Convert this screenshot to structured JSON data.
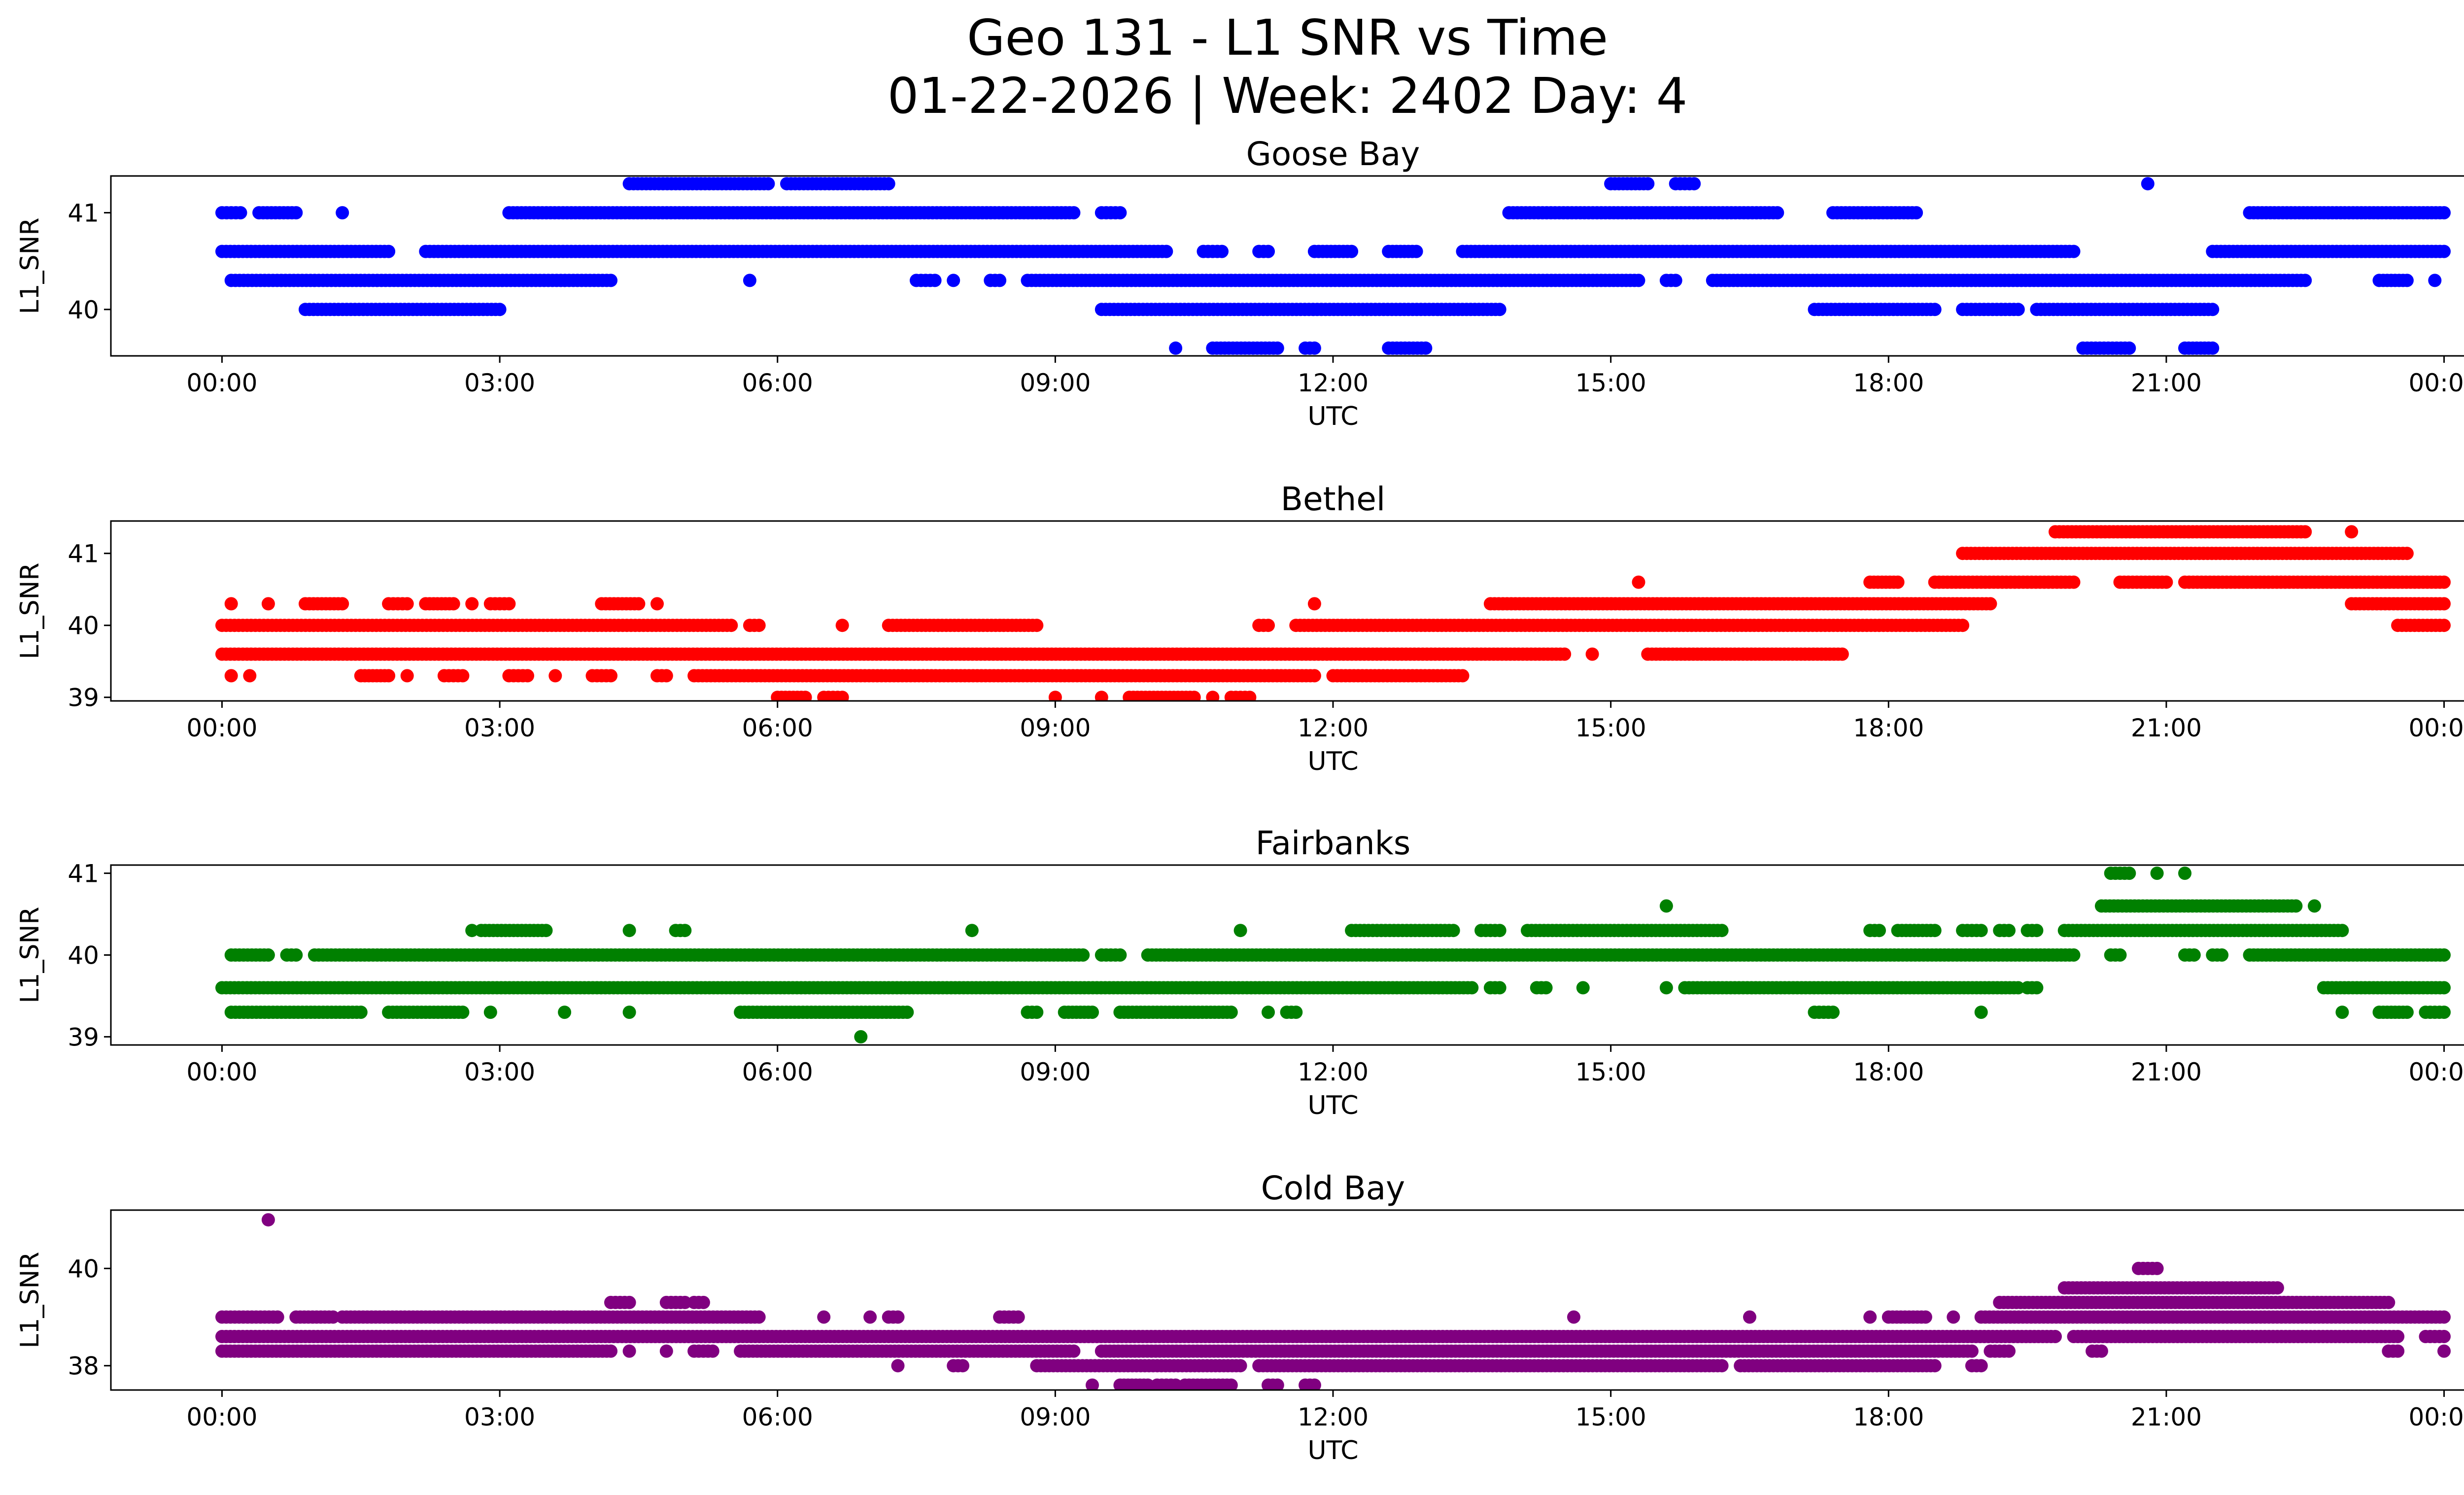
{
  "figure": {
    "title_line1": "Geo 131 - L1 SNR vs Time",
    "title_line2": "01-22-2026 | Week: 2402 Day: 4"
  },
  "chart_data": [
    {
      "type": "scatter",
      "title": "Goose Bay",
      "xlabel": "UTC",
      "ylabel": "L1_SNR",
      "color": "#0000ff",
      "xlim": [
        -1.2,
        25.2
      ],
      "ylim": [
        39.52,
        41.38
      ],
      "x_ticks": [
        0,
        3,
        6,
        9,
        12,
        15,
        18,
        21,
        24
      ],
      "x_tick_labels": [
        "00:00",
        "03:00",
        "06:00",
        "09:00",
        "12:00",
        "15:00",
        "18:00",
        "21:00",
        "00:00"
      ],
      "y_ticks": [
        40,
        41
      ],
      "y_tick_labels": [
        "40",
        "41"
      ],
      "levels": [
        39.6,
        40.0,
        40.3,
        40.6,
        41.0,
        41.3
      ],
      "segments": [
        [
          41.3,
          4.4,
          5.9
        ],
        [
          41.3,
          6.1,
          7.2
        ],
        [
          41.3,
          15.0,
          15.4
        ],
        [
          41.3,
          15.7,
          15.9
        ],
        [
          41.3,
          20.8,
          20.8
        ],
        [
          41.0,
          0.0,
          0.2
        ],
        [
          41.0,
          0.4,
          0.8
        ],
        [
          41.0,
          1.3,
          1.3
        ],
        [
          41.0,
          3.1,
          9.2
        ],
        [
          41.0,
          9.5,
          9.7
        ],
        [
          41.0,
          13.9,
          16.8
        ],
        [
          41.0,
          17.4,
          18.3
        ],
        [
          41.0,
          21.9,
          24.0
        ],
        [
          40.6,
          0.0,
          1.8
        ],
        [
          40.6,
          2.2,
          10.2
        ],
        [
          40.6,
          10.6,
          10.8
        ],
        [
          40.6,
          11.2,
          11.3
        ],
        [
          40.6,
          11.8,
          12.2
        ],
        [
          40.6,
          12.6,
          12.9
        ],
        [
          40.6,
          13.4,
          20.0
        ],
        [
          40.6,
          21.5,
          24.0
        ],
        [
          40.3,
          0.1,
          4.2
        ],
        [
          40.3,
          5.7,
          5.7
        ],
        [
          40.3,
          7.5,
          7.7
        ],
        [
          40.3,
          7.9,
          7.9
        ],
        [
          40.3,
          8.3,
          8.4
        ],
        [
          40.3,
          8.7,
          15.3
        ],
        [
          40.3,
          15.6,
          15.7
        ],
        [
          40.3,
          16.1,
          22.5
        ],
        [
          40.3,
          23.3,
          23.6
        ],
        [
          40.3,
          23.9,
          23.9
        ],
        [
          40.0,
          0.9,
          3.0
        ],
        [
          40.0,
          9.5,
          13.8
        ],
        [
          40.0,
          17.2,
          18.5
        ],
        [
          40.0,
          18.8,
          19.4
        ],
        [
          40.0,
          19.6,
          21.5
        ],
        [
          39.6,
          10.3,
          10.3
        ],
        [
          39.6,
          10.7,
          11.4
        ],
        [
          39.6,
          11.7,
          11.8
        ],
        [
          39.6,
          12.6,
          13.0
        ],
        [
          39.6,
          20.1,
          20.6
        ],
        [
          39.6,
          21.2,
          21.5
        ]
      ]
    },
    {
      "type": "scatter",
      "title": "Bethel",
      "xlabel": "UTC",
      "ylabel": "L1_SNR",
      "color": "#ff0000",
      "xlim": [
        -1.2,
        25.2
      ],
      "ylim": [
        38.95,
        41.45
      ],
      "x_ticks": [
        0,
        3,
        6,
        9,
        12,
        15,
        18,
        21,
        24
      ],
      "x_tick_labels": [
        "00:00",
        "03:00",
        "06:00",
        "09:00",
        "12:00",
        "15:00",
        "18:00",
        "21:00",
        "00:00"
      ],
      "y_ticks": [
        39,
        40,
        41
      ],
      "y_tick_labels": [
        "39",
        "40",
        "41"
      ],
      "levels": [
        39.0,
        39.3,
        39.6,
        40.0,
        40.3,
        40.6,
        41.0,
        41.3
      ],
      "segments": [
        [
          41.3,
          19.8,
          22.5
        ],
        [
          41.3,
          23.0,
          23.0
        ],
        [
          41.0,
          18.8,
          23.6
        ],
        [
          40.6,
          15.3,
          15.3
        ],
        [
          40.6,
          17.8,
          18.1
        ],
        [
          40.6,
          18.5,
          20.0
        ],
        [
          40.6,
          20.5,
          21.0
        ],
        [
          40.6,
          21.2,
          24.0
        ],
        [
          40.3,
          0.1,
          0.1
        ],
        [
          40.3,
          0.5,
          0.5
        ],
        [
          40.3,
          0.9,
          1.3
        ],
        [
          40.3,
          1.8,
          2.0
        ],
        [
          40.3,
          2.2,
          2.5
        ],
        [
          40.3,
          2.7,
          2.7
        ],
        [
          40.3,
          2.9,
          3.1
        ],
        [
          40.3,
          4.1,
          4.5
        ],
        [
          40.3,
          4.7,
          4.7
        ],
        [
          40.3,
          11.8,
          11.8
        ],
        [
          40.3,
          13.7,
          19.1
        ],
        [
          40.3,
          23.0,
          24.0
        ],
        [
          40.0,
          0.0,
          5.5
        ],
        [
          40.0,
          5.7,
          5.8
        ],
        [
          40.0,
          6.7,
          6.7
        ],
        [
          40.0,
          7.2,
          8.8
        ],
        [
          40.0,
          11.2,
          11.3
        ],
        [
          40.0,
          11.6,
          18.8
        ],
        [
          40.0,
          23.5,
          24.0
        ],
        [
          39.6,
          0.0,
          14.5
        ],
        [
          39.6,
          14.8,
          14.8
        ],
        [
          39.6,
          15.4,
          17.5
        ],
        [
          39.3,
          0.1,
          0.1
        ],
        [
          39.3,
          0.3,
          0.3
        ],
        [
          39.3,
          1.5,
          1.8
        ],
        [
          39.3,
          2.0,
          2.0
        ],
        [
          39.3,
          2.4,
          2.6
        ],
        [
          39.3,
          3.1,
          3.3
        ],
        [
          39.3,
          3.6,
          3.6
        ],
        [
          39.3,
          4.0,
          4.2
        ],
        [
          39.3,
          4.7,
          4.8
        ],
        [
          39.3,
          5.1,
          11.8
        ],
        [
          39.3,
          12.0,
          13.4
        ],
        [
          39.0,
          6.0,
          6.3
        ],
        [
          39.0,
          6.5,
          6.7
        ],
        [
          39.0,
          9.0,
          9.0
        ],
        [
          39.0,
          9.5,
          9.5
        ],
        [
          39.0,
          9.8,
          10.5
        ],
        [
          39.0,
          10.7,
          10.7
        ],
        [
          39.0,
          10.9,
          11.1
        ]
      ]
    },
    {
      "type": "scatter",
      "title": "Fairbanks",
      "xlabel": "UTC",
      "ylabel": "L1_SNR",
      "color": "#008000",
      "xlim": [
        -1.2,
        25.2
      ],
      "ylim": [
        38.9,
        41.1
      ],
      "x_ticks": [
        0,
        3,
        6,
        9,
        12,
        15,
        18,
        21,
        24
      ],
      "x_tick_labels": [
        "00:00",
        "03:00",
        "06:00",
        "09:00",
        "12:00",
        "15:00",
        "18:00",
        "21:00",
        "00:00"
      ],
      "y_ticks": [
        39,
        40,
        41
      ],
      "y_tick_labels": [
        "39",
        "40",
        "41"
      ],
      "levels": [
        39.0,
        39.3,
        39.6,
        40.0,
        40.3,
        40.6,
        41.0
      ],
      "segments": [
        [
          41.0,
          20.4,
          20.6
        ],
        [
          41.0,
          20.9,
          20.9
        ],
        [
          41.0,
          21.2,
          21.2
        ],
        [
          40.6,
          15.6,
          15.6
        ],
        [
          40.6,
          20.3,
          22.4
        ],
        [
          40.6,
          22.6,
          22.6
        ],
        [
          40.3,
          2.7,
          2.7
        ],
        [
          40.3,
          2.8,
          3.5
        ],
        [
          40.3,
          4.4,
          4.4
        ],
        [
          40.3,
          4.9,
          5.0
        ],
        [
          40.3,
          8.1,
          8.1
        ],
        [
          40.3,
          11.0,
          11.0
        ],
        [
          40.3,
          12.2,
          13.3
        ],
        [
          40.3,
          13.6,
          13.8
        ],
        [
          40.3,
          14.1,
          16.2
        ],
        [
          40.3,
          17.8,
          17.9
        ],
        [
          40.3,
          18.1,
          18.5
        ],
        [
          40.3,
          18.8,
          19.0
        ],
        [
          40.3,
          19.2,
          19.3
        ],
        [
          40.3,
          19.5,
          19.6
        ],
        [
          40.3,
          19.9,
          22.9
        ],
        [
          40.0,
          0.1,
          0.5
        ],
        [
          40.0,
          0.7,
          0.8
        ],
        [
          40.0,
          1.0,
          9.3
        ],
        [
          40.0,
          9.5,
          9.7
        ],
        [
          40.0,
          10.0,
          20.0
        ],
        [
          40.0,
          20.4,
          20.5
        ],
        [
          40.0,
          21.2,
          21.3
        ],
        [
          40.0,
          21.5,
          21.6
        ],
        [
          40.0,
          21.9,
          24.0
        ],
        [
          39.6,
          0.0,
          13.5
        ],
        [
          39.6,
          13.7,
          13.8
        ],
        [
          39.6,
          14.2,
          14.3
        ],
        [
          39.6,
          14.7,
          14.7
        ],
        [
          39.6,
          15.6,
          15.6
        ],
        [
          39.6,
          15.8,
          19.4
        ],
        [
          39.6,
          19.5,
          19.6
        ],
        [
          39.6,
          22.7,
          24.0
        ],
        [
          39.3,
          0.1,
          1.5
        ],
        [
          39.3,
          1.8,
          2.6
        ],
        [
          39.3,
          2.9,
          2.9
        ],
        [
          39.3,
          3.7,
          3.7
        ],
        [
          39.3,
          4.4,
          4.4
        ],
        [
          39.3,
          5.6,
          7.4
        ],
        [
          39.3,
          8.7,
          8.8
        ],
        [
          39.3,
          9.1,
          9.4
        ],
        [
          39.3,
          9.7,
          10.9
        ],
        [
          39.3,
          11.3,
          11.3
        ],
        [
          39.3,
          11.5,
          11.6
        ],
        [
          39.3,
          17.2,
          17.4
        ],
        [
          39.3,
          19.0,
          19.0
        ],
        [
          39.3,
          22.9,
          22.9
        ],
        [
          39.3,
          23.3,
          23.6
        ],
        [
          39.3,
          23.8,
          24.0
        ],
        [
          39.0,
          6.9,
          6.9
        ]
      ]
    },
    {
      "type": "scatter",
      "title": "Cold Bay",
      "xlabel": "UTC",
      "ylabel": "L1_SNR",
      "color": "#800080",
      "xlim": [
        -1.2,
        25.2
      ],
      "ylim": [
        37.5,
        41.2
      ],
      "x_ticks": [
        0,
        3,
        6,
        9,
        12,
        15,
        18,
        21,
        24
      ],
      "x_tick_labels": [
        "00:00",
        "03:00",
        "06:00",
        "09:00",
        "12:00",
        "15:00",
        "18:00",
        "21:00",
        "00:00"
      ],
      "y_ticks": [
        38,
        40
      ],
      "y_tick_labels": [
        "38",
        "40"
      ],
      "levels": [
        37.6,
        38.0,
        38.3,
        38.6,
        39.0,
        39.3,
        39.6,
        40.0,
        41.0
      ],
      "segments": [
        [
          41.0,
          0.5,
          0.5
        ],
        [
          40.0,
          20.7,
          20.9
        ],
        [
          39.6,
          19.9,
          22.2
        ],
        [
          39.3,
          4.2,
          4.4
        ],
        [
          39.3,
          4.8,
          5.0
        ],
        [
          39.3,
          5.1,
          5.2
        ],
        [
          39.3,
          19.2,
          23.4
        ],
        [
          39.0,
          0.0,
          0.6
        ],
        [
          39.0,
          0.8,
          1.2
        ],
        [
          39.0,
          1.3,
          5.8
        ],
        [
          39.0,
          6.5,
          6.5
        ],
        [
          39.0,
          7.0,
          7.0
        ],
        [
          39.0,
          7.2,
          7.3
        ],
        [
          39.0,
          8.4,
          8.6
        ],
        [
          39.0,
          14.6,
          14.6
        ],
        [
          39.0,
          16.5,
          16.5
        ],
        [
          39.0,
          17.8,
          17.8
        ],
        [
          39.0,
          18.0,
          18.4
        ],
        [
          39.0,
          18.7,
          18.7
        ],
        [
          39.0,
          19.0,
          24.0
        ],
        [
          38.6,
          0.0,
          19.8
        ],
        [
          38.6,
          20.0,
          23.5
        ],
        [
          38.6,
          23.8,
          24.0
        ],
        [
          38.3,
          0.0,
          4.2
        ],
        [
          38.3,
          4.4,
          4.4
        ],
        [
          38.3,
          4.8,
          4.8
        ],
        [
          38.3,
          5.1,
          5.3
        ],
        [
          38.3,
          5.6,
          9.2
        ],
        [
          38.3,
          9.5,
          18.9
        ],
        [
          38.3,
          19.1,
          19.3
        ],
        [
          38.3,
          20.2,
          20.3
        ],
        [
          38.3,
          23.4,
          23.5
        ],
        [
          38.3,
          24.0,
          24.0
        ],
        [
          38.0,
          7.3,
          7.3
        ],
        [
          38.0,
          7.9,
          8.0
        ],
        [
          38.0,
          8.8,
          11.0
        ],
        [
          38.0,
          11.2,
          16.2
        ],
        [
          38.0,
          16.4,
          18.5
        ],
        [
          38.0,
          18.9,
          19.0
        ],
        [
          37.6,
          9.4,
          9.4
        ],
        [
          37.6,
          9.7,
          10.0
        ],
        [
          37.6,
          10.1,
          10.3
        ],
        [
          37.6,
          10.4,
          10.9
        ],
        [
          37.6,
          11.3,
          11.4
        ],
        [
          37.6,
          11.7,
          11.8
        ]
      ]
    }
  ]
}
